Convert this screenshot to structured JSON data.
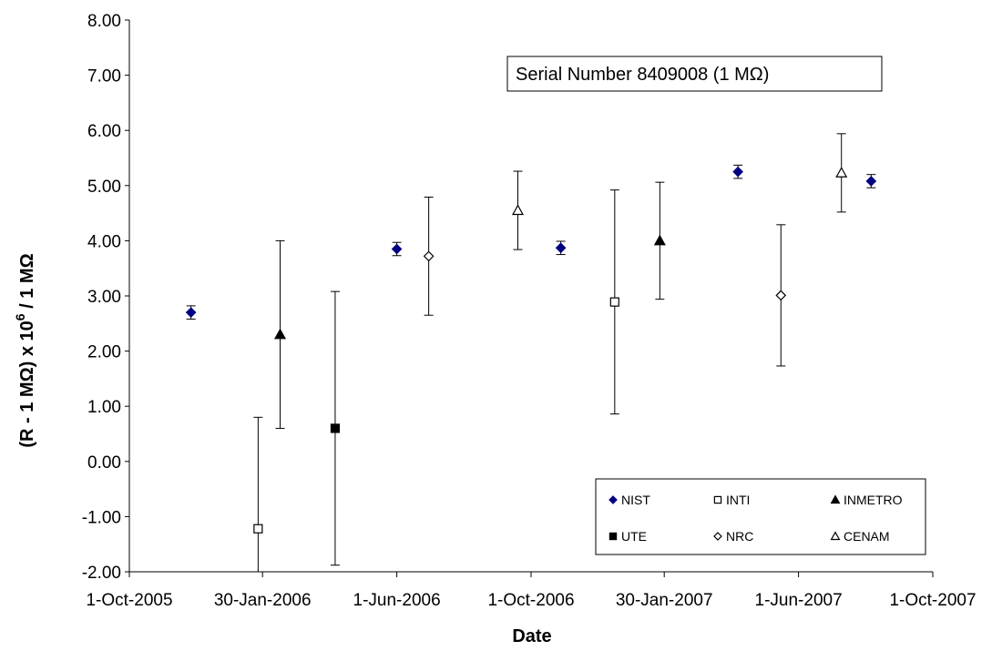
{
  "chart_data": {
    "type": "scatter",
    "xlabel": "Date",
    "ylabel_main": "(R - 1 MΩ) x 10",
    "ylabel_sup": "6",
    "ylabel_tail": " / 1 MΩ",
    "annotation": "Serial Number 8409008 (1 MΩ)",
    "xlim": [
      "2005-10-01",
      "2007-10-01"
    ],
    "ylim": [
      -2,
      8
    ],
    "x_ticks": [
      {
        "date": "2005-10-01",
        "label": "1-Oct-2005"
      },
      {
        "date": "2006-01-30",
        "label": "30-Jan-2006"
      },
      {
        "date": "2006-06-01",
        "label": "1-Jun-2006"
      },
      {
        "date": "2006-10-01",
        "label": "1-Oct-2006"
      },
      {
        "date": "2007-01-30",
        "label": "30-Jan-2007"
      },
      {
        "date": "2007-06-01",
        "label": "1-Jun-2007"
      },
      {
        "date": "2007-10-01",
        "label": "1-Oct-2007"
      }
    ],
    "y_ticks": [
      "-2.00",
      "-1.00",
      "0.00",
      "1.00",
      "2.00",
      "3.00",
      "4.00",
      "5.00",
      "6.00",
      "7.00",
      "8.00"
    ],
    "grid": false,
    "legend_position": "bottom-right",
    "series": [
      {
        "name": "NIST",
        "marker": "diamond-filled",
        "color": "#000080",
        "points": [
          {
            "x": "2005-11-26",
            "y": 2.7,
            "err": 0.12
          },
          {
            "x": "2006-06-01",
            "y": 3.85,
            "err": 0.12
          },
          {
            "x": "2006-10-28",
            "y": 3.87,
            "err": 0.12
          },
          {
            "x": "2007-04-07",
            "y": 5.25,
            "err": 0.12
          },
          {
            "x": "2007-08-06",
            "y": 5.08,
            "err": 0.12
          }
        ]
      },
      {
        "name": "INTI",
        "marker": "square-open",
        "color": "#000000",
        "points": [
          {
            "x": "2006-01-26",
            "y": -1.22,
            "err": 2.02
          },
          {
            "x": "2006-12-16",
            "y": 2.89,
            "err": 2.03
          }
        ]
      },
      {
        "name": "INMETRO",
        "marker": "triangle-filled",
        "color": "#000000",
        "points": [
          {
            "x": "2006-02-15",
            "y": 2.3,
            "err": 1.7
          },
          {
            "x": "2007-01-26",
            "y": 4.0,
            "err": 1.06
          }
        ]
      },
      {
        "name": "UTE",
        "marker": "square-filled",
        "color": "#000000",
        "points": [
          {
            "x": "2006-04-06",
            "y": 0.6,
            "err": 2.48
          }
        ]
      },
      {
        "name": "NRC",
        "marker": "diamond-open",
        "color": "#000000",
        "points": [
          {
            "x": "2006-06-30",
            "y": 3.72,
            "err": 1.07
          },
          {
            "x": "2007-05-16",
            "y": 3.01,
            "err": 1.28
          }
        ]
      },
      {
        "name": "CENAM",
        "marker": "triangle-open",
        "color": "#000000",
        "points": [
          {
            "x": "2006-09-19",
            "y": 4.55,
            "err": 0.71
          },
          {
            "x": "2007-07-10",
            "y": 5.23,
            "err": 0.71
          }
        ]
      }
    ]
  }
}
